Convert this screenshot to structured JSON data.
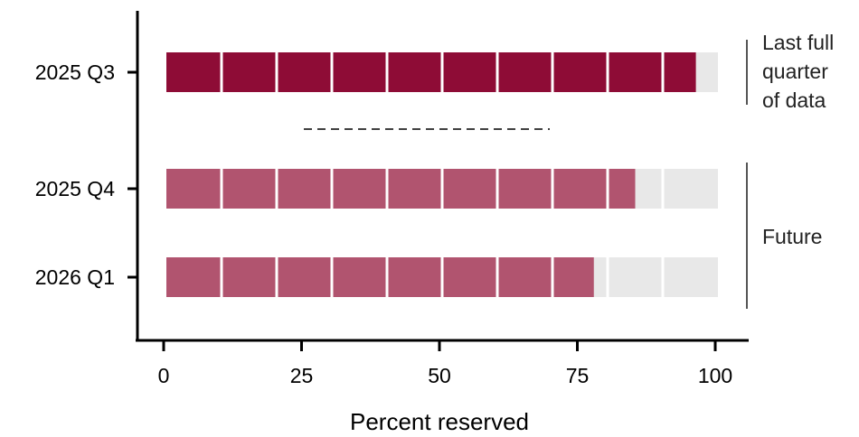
{
  "chart_data": {
    "type": "bar",
    "orientation": "horizontal",
    "style": "segmented",
    "xlabel": "Percent reserved",
    "xlim": [
      0,
      100
    ],
    "xticks": [
      0,
      25,
      50,
      75,
      100
    ],
    "segment_step": 10,
    "categories": [
      "2025 Q3",
      "2025 Q4",
      "2026 Q1"
    ],
    "values": [
      96,
      85,
      77.5
    ],
    "grid": false,
    "colors": {
      "past": "#8e0c36",
      "future": "#b1546f",
      "remainder": "#e8e8e8"
    },
    "annotations": {
      "last_full": [
        "Last full",
        "quarter",
        "of data"
      ],
      "future": "Future"
    }
  }
}
